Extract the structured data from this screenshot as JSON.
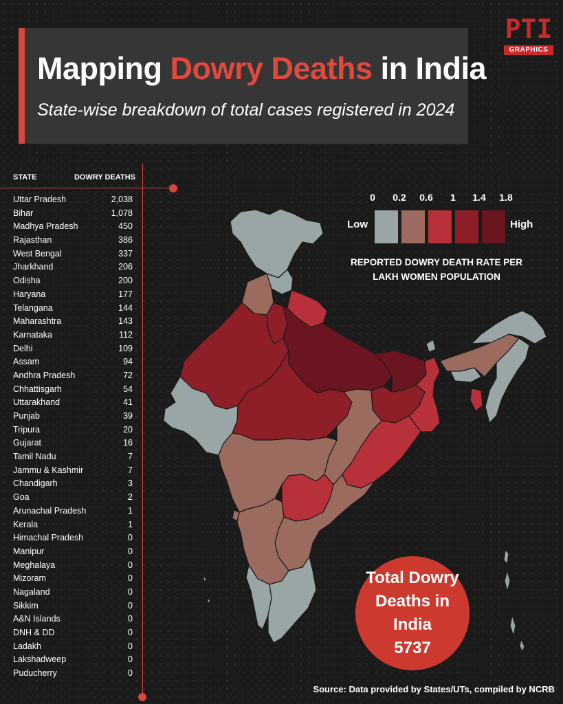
{
  "title": {
    "part1": "Mapping ",
    "highlight": "Dowry Deaths",
    "part2": " in India"
  },
  "subtitle": "State-wise breakdown of total cases registered in 2024",
  "logo": {
    "main": "PTI",
    "sub": "GRAPHICS"
  },
  "table": {
    "header_state": "STATE",
    "header_deaths": "DOWRY DEATHS",
    "rows": [
      {
        "state": "Uttar Pradesh",
        "deaths": "2,038"
      },
      {
        "state": "Bihar",
        "deaths": "1,078"
      },
      {
        "state": "Madhya Pradesh",
        "deaths": "450"
      },
      {
        "state": "Rajasthan",
        "deaths": "386"
      },
      {
        "state": "West Bengal",
        "deaths": "337"
      },
      {
        "state": "Jharkhand",
        "deaths": "206"
      },
      {
        "state": "Odisha",
        "deaths": "200"
      },
      {
        "state": "Haryana",
        "deaths": "177"
      },
      {
        "state": "Telangana",
        "deaths": "144"
      },
      {
        "state": "Maharashtra",
        "deaths": "143"
      },
      {
        "state": "Karnataka",
        "deaths": "112"
      },
      {
        "state": "Delhi",
        "deaths": "109"
      },
      {
        "state": "Assam",
        "deaths": "94"
      },
      {
        "state": "Andhra Pradesh",
        "deaths": "72"
      },
      {
        "state": "Chhattisgarh",
        "deaths": "54"
      },
      {
        "state": "Uttarakhand",
        "deaths": "41"
      },
      {
        "state": "Punjab",
        "deaths": "39"
      },
      {
        "state": "Tripura",
        "deaths": "20"
      },
      {
        "state": "Gujarat",
        "deaths": "16"
      },
      {
        "state": "Tamil Nadu",
        "deaths": "7"
      },
      {
        "state": "Jammu & Kashmir",
        "deaths": "7"
      },
      {
        "state": "Chandigarh",
        "deaths": "3"
      },
      {
        "state": "Goa",
        "deaths": "2"
      },
      {
        "state": "Arunachal Pradesh",
        "deaths": "1"
      },
      {
        "state": "Kerala",
        "deaths": "1"
      },
      {
        "state": "Himachal Pradesh",
        "deaths": "0"
      },
      {
        "state": "Manipur",
        "deaths": "0"
      },
      {
        "state": "Meghalaya",
        "deaths": "0"
      },
      {
        "state": "Mizoram",
        "deaths": "0"
      },
      {
        "state": "Nagaland",
        "deaths": "0"
      },
      {
        "state": "Sikkim",
        "deaths": "0"
      },
      {
        "state": "A&N Islands",
        "deaths": "0"
      },
      {
        "state": "DNH & DD",
        "deaths": "0"
      },
      {
        "state": "Ladakh",
        "deaths": "0"
      },
      {
        "state": "Lakshadweep",
        "deaths": "0"
      },
      {
        "state": "Puducherry",
        "deaths": "0"
      }
    ]
  },
  "legend": {
    "ticks": [
      "0",
      "0.2",
      "0.6",
      "1",
      "1.4",
      "1.8"
    ],
    "low_label": "Low",
    "high_label": "High",
    "colors": [
      "#9aa6a6",
      "#9a6b5e",
      "#b8303a",
      "#8e1f28",
      "#6a1520"
    ],
    "title_line1": "REPORTED DOWRY DEATH RATE PER",
    "title_line2": "LAKH WOMEN POPULATION"
  },
  "total": {
    "line1": "Total Dowry",
    "line2": "Deaths in India",
    "value": "5737"
  },
  "source": "Source: Data provided by States/UTs, compiled by NCRB"
}
